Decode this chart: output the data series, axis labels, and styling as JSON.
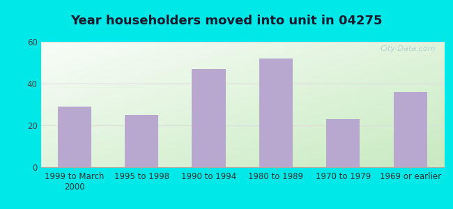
{
  "title": "Year householders moved into unit in 04275",
  "categories": [
    "1999 to March\n2000",
    "1995 to 1998",
    "1990 to 1994",
    "1980 to 1989",
    "1970 to 1979",
    "1969 or earlier"
  ],
  "values": [
    29,
    25,
    47,
    52,
    23,
    36
  ],
  "bar_color": "#b8a8d0",
  "ylim": [
    0,
    60
  ],
  "yticks": [
    0,
    20,
    40,
    60
  ],
  "background_outer": "#00e8e8",
  "grid_color": "#dddddd",
  "title_fontsize": 13,
  "tick_fontsize": 8.5,
  "watermark": "City-Data.com",
  "grad_bottom_left": "#c8eac0",
  "grad_top_right": "#f8fdf8"
}
